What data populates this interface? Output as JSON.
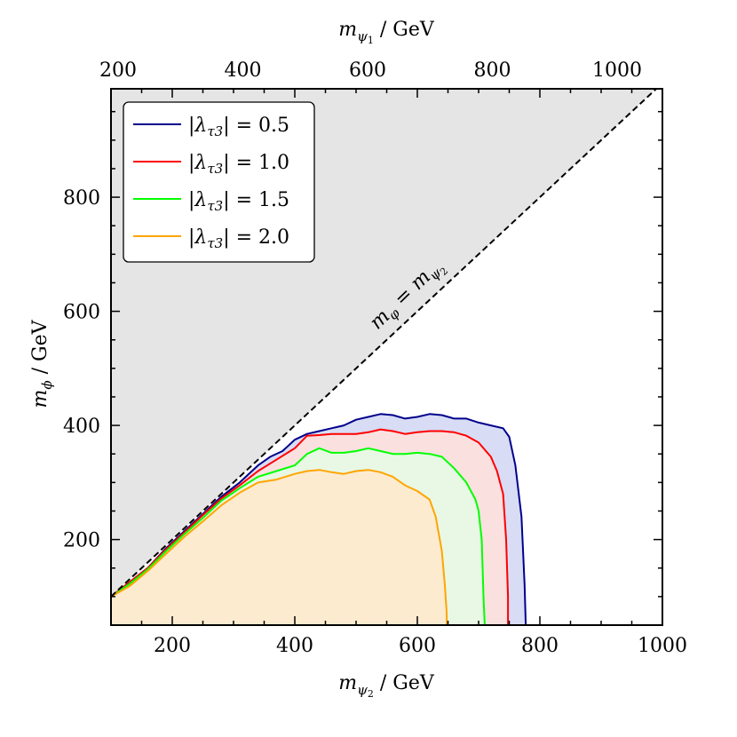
{
  "chart_data": {
    "type": "area",
    "title": "",
    "xlabel": "m_{ψ₂} / GeV",
    "xlabel_top": "m_{ψ₁} / GeV",
    "ylabel": "m_φ / GeV",
    "xlim": [
      100,
      1000
    ],
    "ylim": [
      50,
      990
    ],
    "top_axis_ticks": [
      200,
      400,
      600,
      800,
      1000
    ],
    "bottom_axis_ticks": [
      200,
      400,
      600,
      800,
      1000
    ],
    "left_axis_ticks": [
      200,
      400,
      600,
      800
    ],
    "excluded_region": {
      "label": "m_φ = m_{ψ₂}",
      "label_parts": {
        "lhs": "m",
        "lhs_sub": "φ",
        "eq": " = ",
        "rhs": "m",
        "rhs_sub": "ψ",
        "rhs_subsub": "2"
      },
      "boundary": "y = x",
      "fill": "#e5e5e5"
    },
    "legend": {
      "placement": "top-left",
      "entries": [
        {
          "label": "|λτ3| = 0.5",
          "value": "0.5"
        },
        {
          "label": "|λτ3| = 1.0",
          "value": "1.0"
        },
        {
          "label": "|λτ3| = 1.5",
          "value": "1.5"
        },
        {
          "label": "|λτ3| = 2.0",
          "value": "2.0"
        }
      ]
    },
    "series": [
      {
        "name": "|λτ3| = 0.5",
        "color": "#00008b",
        "fill": "#d8dcf5",
        "points": [
          [
            100,
            100
          ],
          [
            130,
            125
          ],
          [
            160,
            150
          ],
          [
            190,
            185
          ],
          [
            220,
            215
          ],
          [
            250,
            245
          ],
          [
            280,
            275
          ],
          [
            310,
            300
          ],
          [
            340,
            330
          ],
          [
            360,
            345
          ],
          [
            380,
            355
          ],
          [
            400,
            375
          ],
          [
            420,
            385
          ],
          [
            440,
            390
          ],
          [
            460,
            395
          ],
          [
            480,
            400
          ],
          [
            500,
            410
          ],
          [
            520,
            415
          ],
          [
            540,
            420
          ],
          [
            560,
            418
          ],
          [
            580,
            412
          ],
          [
            600,
            415
          ],
          [
            620,
            420
          ],
          [
            640,
            418
          ],
          [
            660,
            412
          ],
          [
            680,
            412
          ],
          [
            700,
            405
          ],
          [
            720,
            400
          ],
          [
            740,
            395
          ],
          [
            750,
            380
          ],
          [
            760,
            330
          ],
          [
            770,
            240
          ],
          [
            775,
            120
          ],
          [
            777,
            50
          ]
        ]
      },
      {
        "name": "|λτ3| = 1.0",
        "color": "#ff0000",
        "fill": "#fbe0e0",
        "points": [
          [
            100,
            100
          ],
          [
            130,
            125
          ],
          [
            160,
            150
          ],
          [
            190,
            183
          ],
          [
            220,
            213
          ],
          [
            250,
            243
          ],
          [
            280,
            272
          ],
          [
            310,
            295
          ],
          [
            340,
            320
          ],
          [
            370,
            340
          ],
          [
            400,
            360
          ],
          [
            420,
            382
          ],
          [
            440,
            383
          ],
          [
            460,
            385
          ],
          [
            480,
            385
          ],
          [
            500,
            385
          ],
          [
            520,
            388
          ],
          [
            540,
            393
          ],
          [
            560,
            390
          ],
          [
            580,
            385
          ],
          [
            600,
            388
          ],
          [
            620,
            390
          ],
          [
            640,
            390
          ],
          [
            660,
            388
          ],
          [
            680,
            382
          ],
          [
            700,
            370
          ],
          [
            720,
            345
          ],
          [
            730,
            320
          ],
          [
            740,
            280
          ],
          [
            745,
            200
          ],
          [
            748,
            100
          ],
          [
            748,
            50
          ]
        ]
      },
      {
        "name": "|λτ3| = 1.5",
        "color": "#00ff00",
        "fill": "#e8f8e4",
        "points": [
          [
            100,
            100
          ],
          [
            130,
            122
          ],
          [
            160,
            148
          ],
          [
            190,
            180
          ],
          [
            220,
            210
          ],
          [
            250,
            238
          ],
          [
            280,
            268
          ],
          [
            310,
            290
          ],
          [
            340,
            310
          ],
          [
            370,
            320
          ],
          [
            400,
            330
          ],
          [
            420,
            350
          ],
          [
            440,
            360
          ],
          [
            460,
            352
          ],
          [
            480,
            352
          ],
          [
            500,
            355
          ],
          [
            520,
            360
          ],
          [
            540,
            355
          ],
          [
            560,
            350
          ],
          [
            580,
            350
          ],
          [
            600,
            352
          ],
          [
            620,
            350
          ],
          [
            640,
            345
          ],
          [
            660,
            325
          ],
          [
            680,
            300
          ],
          [
            695,
            270
          ],
          [
            700,
            250
          ],
          [
            705,
            200
          ],
          [
            708,
            100
          ],
          [
            710,
            50
          ]
        ]
      },
      {
        "name": "|λτ3| = 2.0",
        "color": "#ffa500",
        "fill": "#fdebd0",
        "points": [
          [
            100,
            100
          ],
          [
            130,
            118
          ],
          [
            160,
            145
          ],
          [
            190,
            175
          ],
          [
            220,
            205
          ],
          [
            250,
            232
          ],
          [
            280,
            260
          ],
          [
            310,
            282
          ],
          [
            340,
            300
          ],
          [
            370,
            305
          ],
          [
            400,
            315
          ],
          [
            420,
            320
          ],
          [
            440,
            322
          ],
          [
            460,
            318
          ],
          [
            480,
            315
          ],
          [
            500,
            320
          ],
          [
            520,
            322
          ],
          [
            540,
            318
          ],
          [
            560,
            310
          ],
          [
            580,
            295
          ],
          [
            600,
            285
          ],
          [
            620,
            270
          ],
          [
            630,
            240
          ],
          [
            640,
            180
          ],
          [
            645,
            120
          ],
          [
            648,
            70
          ],
          [
            648,
            50
          ]
        ]
      }
    ]
  }
}
